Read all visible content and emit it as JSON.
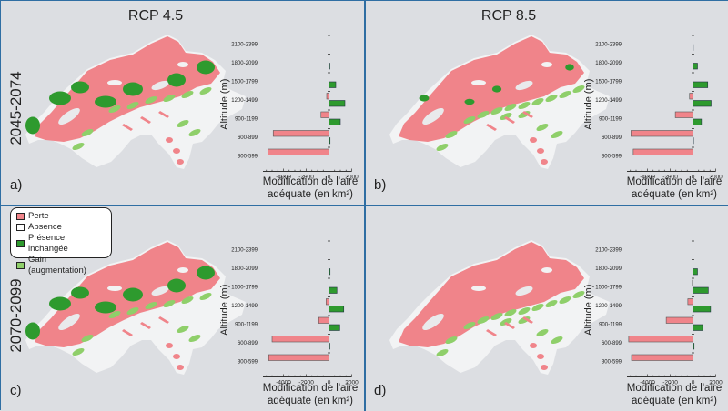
{
  "figure": {
    "scenarios": [
      "RCP 4.5",
      "RCP 8.5"
    ],
    "periods": [
      "2045-2074",
      "2070-2099"
    ],
    "panel_labels": [
      "a)",
      "b)",
      "c)",
      "d)"
    ],
    "x_axis_label_line1": "Modification de l'aire",
    "x_axis_label_line2": "adéquate (en km²)",
    "y_axis_label": "Altitude (m)"
  },
  "legend": {
    "items": [
      {
        "label": "Perte",
        "color": "#f0848a"
      },
      {
        "label": "Absence",
        "color": "#ffffff"
      },
      {
        "label": "Présence inchangée",
        "color": "#2e9a2e"
      },
      {
        "label": "Gain (augmentation)",
        "color": "#8fcf6a"
      }
    ]
  },
  "colors": {
    "loss": "#f0848a",
    "unchanged": "#2e9a2e",
    "gain": "#8fcf6a",
    "absence": "#f2f3f4",
    "background": "#dcdee2",
    "divider": "#2f6ea3"
  },
  "chart_data": [
    {
      "type": "bar",
      "panel": "a)",
      "title": "RCP 4.5 — 2045-2074",
      "orientation": "horizontal",
      "categories": [
        "300-599",
        "600-899",
        "900-1199",
        "1200-1499",
        "1500-1799",
        "1800-2099",
        "2100-2399"
      ],
      "series": [
        {
          "name": "Perte",
          "values": [
            -5350,
            -4900,
            -700,
            -200,
            0,
            0,
            0
          ]
        },
        {
          "name": "Gain",
          "values": [
            0,
            100,
            1000,
            1400,
            600,
            80,
            0
          ]
        }
      ],
      "xlabel": "Modification de l'aire adéquate (en km²)",
      "ylabel": "Altitude (m)",
      "xticks": [
        -4000,
        -2000,
        0,
        2000
      ],
      "xlim": [
        -5800,
        2200
      ]
    },
    {
      "type": "bar",
      "panel": "b)",
      "title": "RCP 8.5 — 2045-2074",
      "orientation": "horizontal",
      "categories": [
        "300-599",
        "600-899",
        "900-1199",
        "1200-1499",
        "1500-1799",
        "1800-2099",
        "2100-2399"
      ],
      "series": [
        {
          "name": "Perte",
          "values": [
            -5250,
            -5450,
            -1550,
            -300,
            0,
            0,
            0
          ]
        },
        {
          "name": "Gain",
          "values": [
            0,
            50,
            750,
            1600,
            1300,
            400,
            30
          ]
        }
      ],
      "xlabel": "Modification de l'aire adéquate (en km²)",
      "ylabel": "Altitude (m)",
      "xticks": [
        -4000,
        -2000,
        0,
        2000
      ],
      "xlim": [
        -5800,
        2200
      ]
    },
    {
      "type": "bar",
      "panel": "c)",
      "title": "RCP 4.5 — 2070-2099",
      "orientation": "horizontal",
      "categories": [
        "300-599",
        "600-899",
        "900-1199",
        "1200-1499",
        "1500-1799",
        "1800-2099",
        "2100-2399"
      ],
      "series": [
        {
          "name": "Perte",
          "values": [
            -5300,
            -5000,
            -900,
            -250,
            0,
            0,
            0
          ]
        },
        {
          "name": "Gain",
          "values": [
            0,
            80,
            950,
            1300,
            700,
            100,
            0
          ]
        }
      ],
      "xlabel": "Modification de l'aire adéquate (en km²)",
      "ylabel": "Altitude (m)",
      "xticks": [
        -4000,
        -2000,
        0,
        2000
      ],
      "xlim": [
        -5800,
        2200
      ]
    },
    {
      "type": "bar",
      "panel": "d)",
      "title": "RCP 8.5 — 2070-2099",
      "orientation": "horizontal",
      "categories": [
        "300-599",
        "600-899",
        "900-1199",
        "1200-1499",
        "1500-1799",
        "1800-2099",
        "2100-2399"
      ],
      "series": [
        {
          "name": "Perte",
          "values": [
            -5400,
            -5650,
            -2350,
            -450,
            -50,
            0,
            0
          ]
        },
        {
          "name": "Gain",
          "values": [
            0,
            100,
            850,
            1550,
            1350,
            400,
            0
          ]
        }
      ],
      "xlabel": "Modification de l'aire adéquate (en km²)",
      "ylabel": "Altitude (m)",
      "xticks": [
        -4000,
        -2000,
        0,
        2000
      ],
      "xlim": [
        -5800,
        2200
      ]
    }
  ]
}
